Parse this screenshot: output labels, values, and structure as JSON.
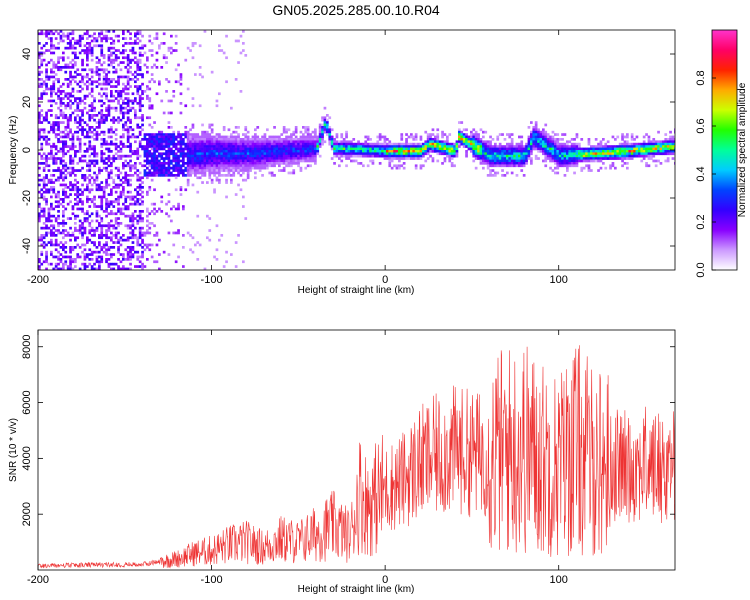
{
  "chart_data": [
    {
      "type": "heatmap",
      "title": "GN05.2025.285.00.10.R04",
      "xlabel": "Height of straight line (km)",
      "ylabel": "Frequency (Hz)",
      "xlim": [
        -200,
        167
      ],
      "ylim": [
        -50,
        50
      ],
      "xticks": [
        -200,
        -100,
        0,
        100
      ],
      "yticks": [
        -40,
        -20,
        0,
        20,
        40
      ],
      "colorbar": {
        "label": "Normalized spectral amplitude",
        "range": [
          0,
          1
        ],
        "ticks": [
          0.0,
          0.2,
          0.4,
          0.6,
          0.8
        ],
        "colors": [
          "#ffffff",
          "#cc99ff",
          "#8800ff",
          "#3300ff",
          "#0044ff",
          "#00ccff",
          "#00ff99",
          "#22ff00",
          "#ccff00",
          "#ffaa00",
          "#ff2200",
          "#ff0066",
          "#ff33cc"
        ]
      },
      "ridge": {
        "description_points_x": [
          -140,
          -120,
          -100,
          -80,
          -60,
          -40,
          -35,
          -30,
          -20,
          0,
          20,
          25,
          40,
          42,
          60,
          80,
          85,
          100,
          120,
          140,
          167
        ],
        "description_points_y": [
          -2,
          -2,
          -1,
          -1,
          0,
          1,
          12,
          1,
          1,
          0,
          0,
          3,
          0,
          6,
          -2,
          -2,
          6,
          -2,
          -1,
          0,
          2
        ]
      }
    },
    {
      "type": "line",
      "xlabel": "Height of straight line (km)",
      "ylabel": "SNR (10 * v/v)",
      "xlim": [
        -200,
        167
      ],
      "ylim": [
        0,
        8600
      ],
      "xticks": [
        -200,
        -100,
        0,
        100
      ],
      "yticks": [
        2000,
        4000,
        6000,
        8000
      ],
      "color": "#ee3333",
      "series": [
        {
          "x": [
            -200,
            -180,
            -160,
            -140,
            -130,
            -120,
            -110,
            -100,
            -90,
            -80,
            -70,
            -60,
            -50,
            -40,
            -30,
            -20,
            -15,
            -10,
            0,
            10,
            20,
            30,
            40,
            50,
            60,
            70,
            80,
            90,
            100,
            110,
            120,
            130,
            140,
            150,
            160,
            167
          ],
          "values": [
            150,
            170,
            190,
            200,
            300,
            400,
            600,
            700,
            900,
            1000,
            800,
            1100,
            1000,
            1300,
            1600,
            1200,
            2800,
            2300,
            2900,
            3200,
            3800,
            4100,
            4300,
            4200,
            4100,
            4300,
            4400,
            4000,
            3800,
            4400,
            3900,
            3800,
            3700,
            3800,
            3700,
            3800
          ]
        }
      ]
    }
  ]
}
